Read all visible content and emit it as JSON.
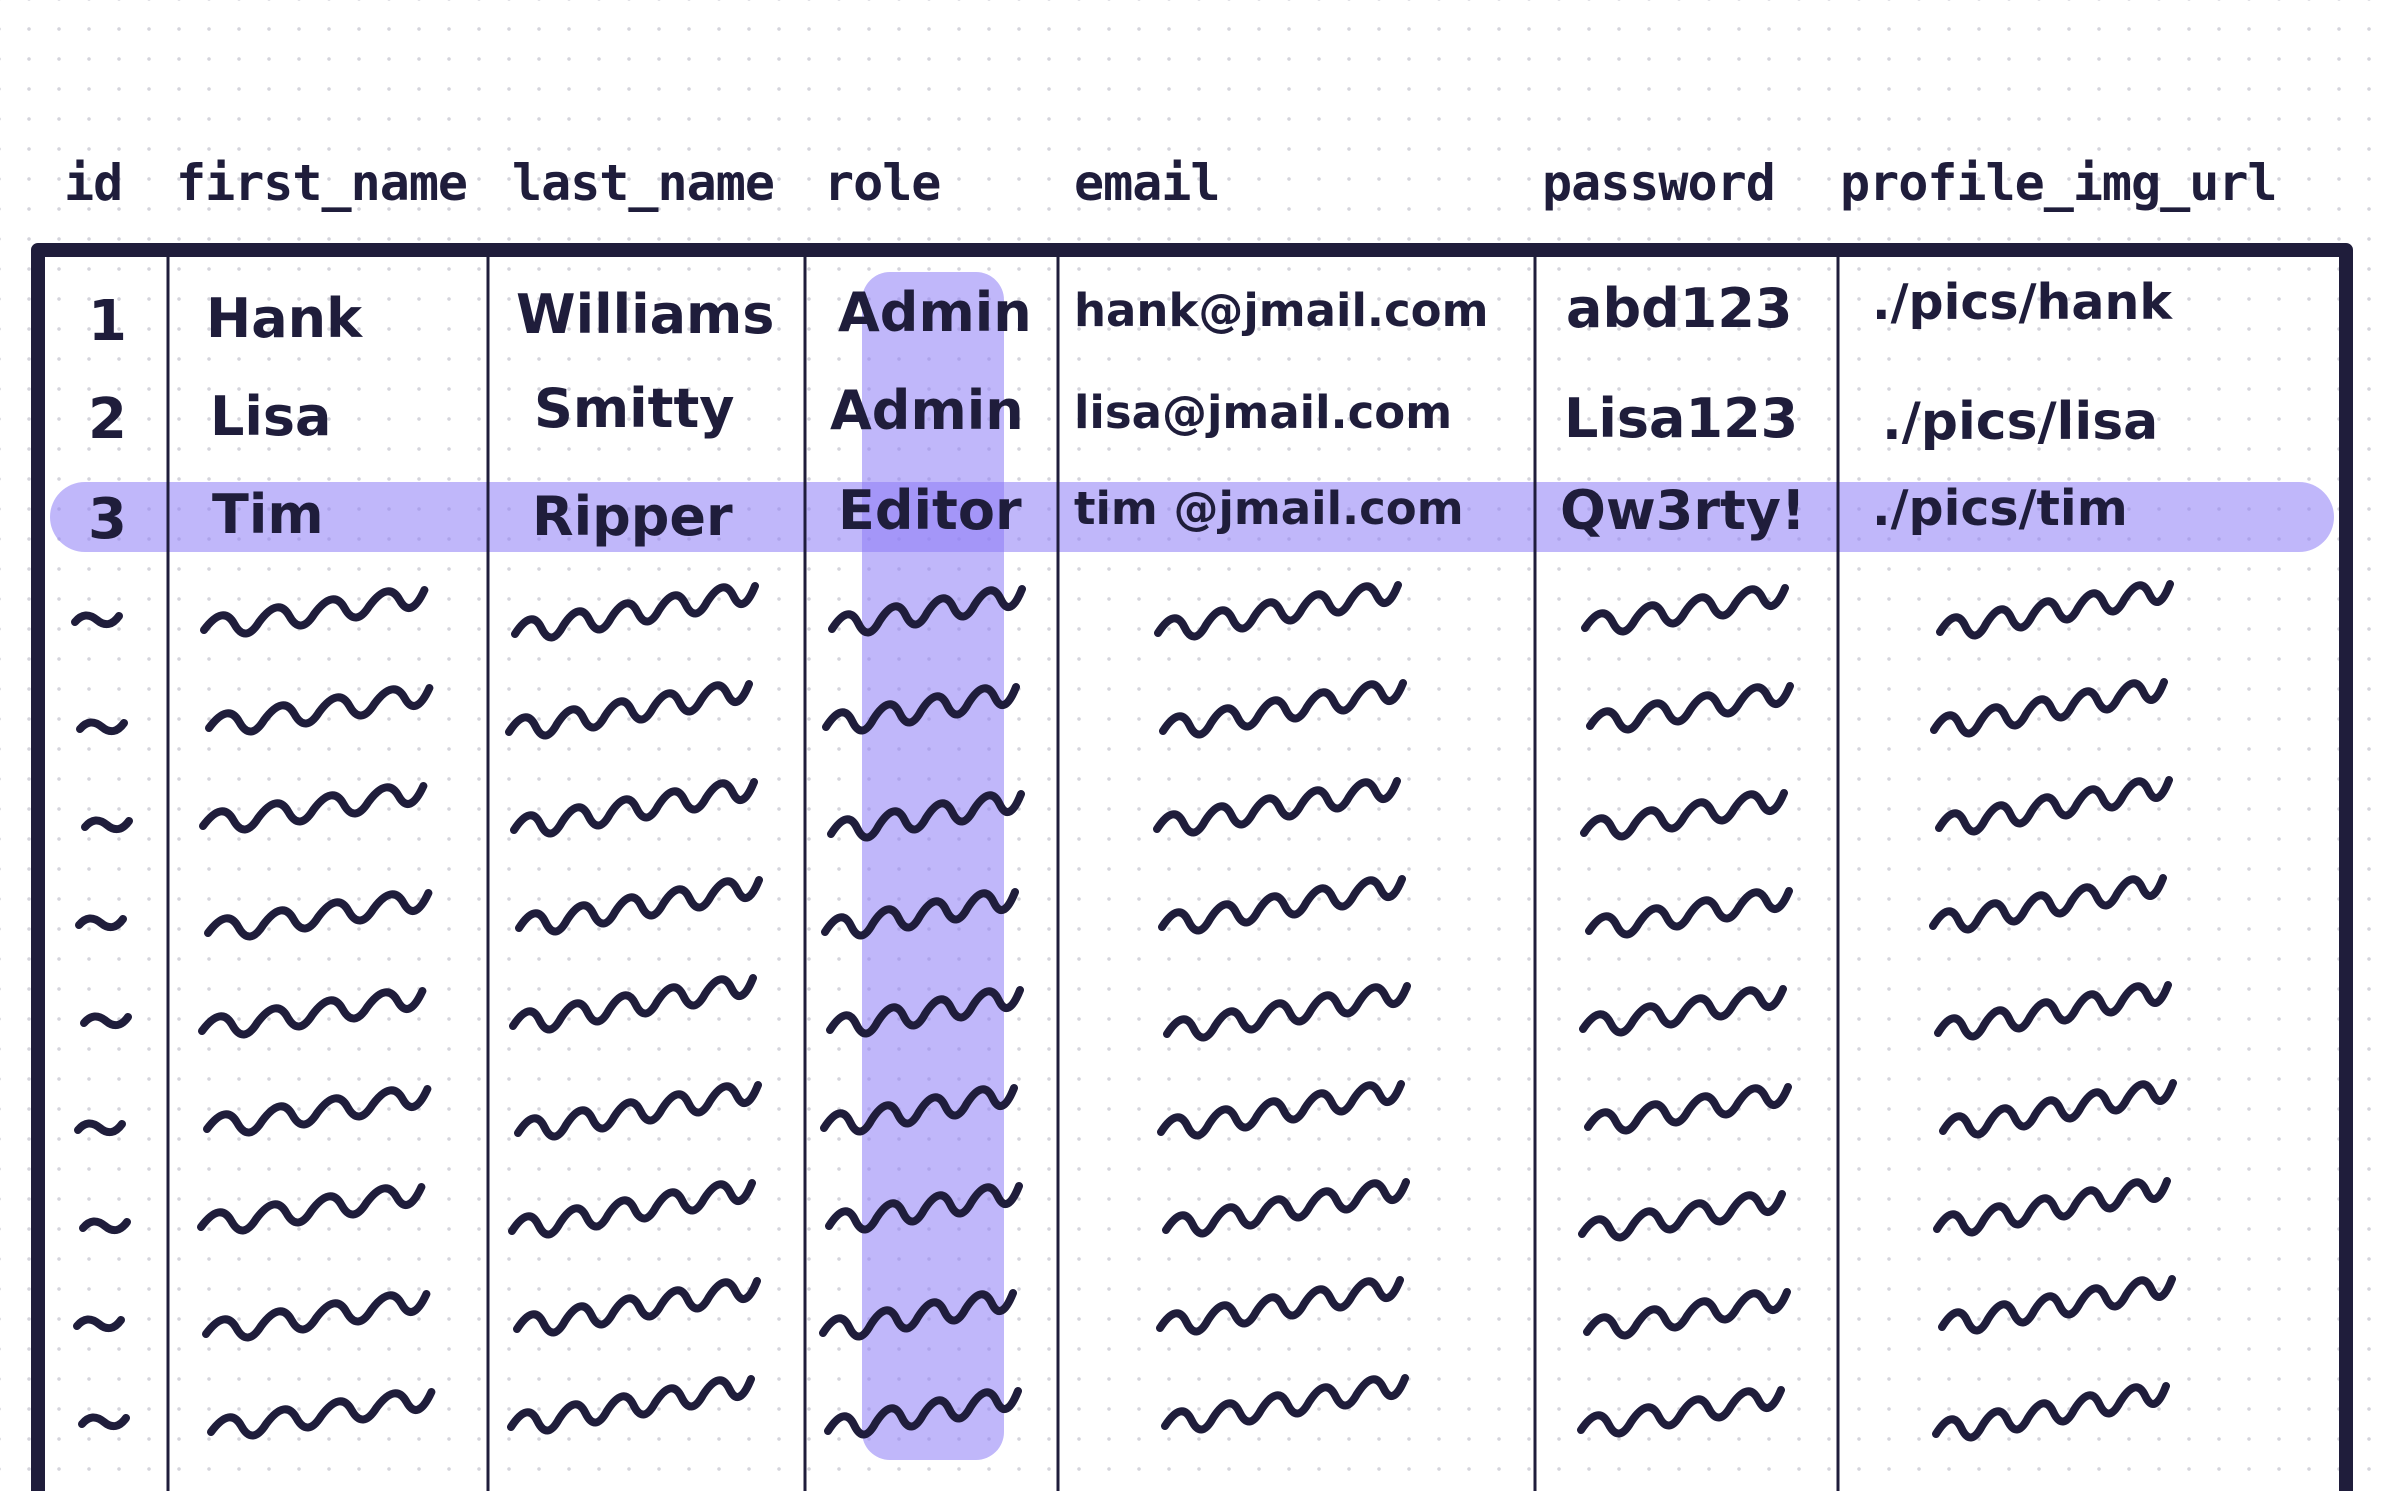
{
  "table": {
    "columns": [
      "id",
      "first_name",
      "last_name",
      "role",
      "email",
      "password",
      "profile_img_url"
    ],
    "rows": [
      {
        "id": "1",
        "first_name": "Hank",
        "last_name": "Williams",
        "role": "Admin",
        "email": "hank@jmail.com",
        "password": "abd123",
        "profile_img_url": "./pics/hank"
      },
      {
        "id": "2",
        "first_name": "Lisa",
        "last_name": "Smitty",
        "role": "Admin",
        "email": "lisa@jmail.com",
        "password": "Lisa123",
        "profile_img_url": "./pics/lisa"
      },
      {
        "id": "3",
        "first_name": "Tim",
        "last_name": "Ripper",
        "role": "Editor",
        "email": "tim @jmail.com",
        "password": "Qw3rty!",
        "profile_img_url": "./pics/tim"
      }
    ],
    "placeholder_rows": 9,
    "highlighted_row_id": "3",
    "highlighted_column": "role"
  },
  "colors": {
    "ink": "#1f1d3b",
    "highlight": "#8c7cf6",
    "background": "#ffffff",
    "grid_dots": "#d4d4dc"
  }
}
